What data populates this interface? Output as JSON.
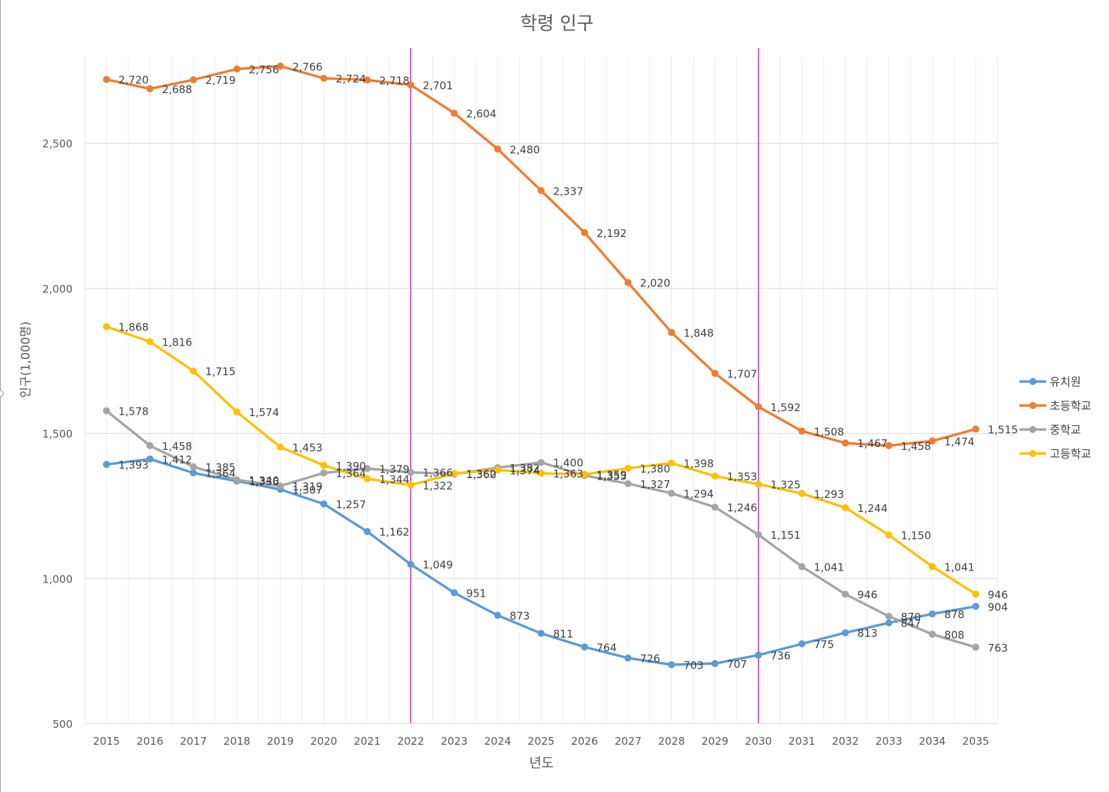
{
  "chart_data": {
    "type": "line",
    "title": "학령 인구",
    "xlabel": "년도",
    "ylabel": "인구(1,000명)",
    "x": [
      "2015",
      "2016",
      "2017",
      "2018",
      "2019",
      "2020",
      "2021",
      "2022",
      "2023",
      "2024",
      "2025",
      "2026",
      "2027",
      "2028",
      "2029",
      "2030",
      "2031",
      "2032",
      "2033",
      "2034",
      "2035"
    ],
    "yticks": [
      500,
      1000,
      1500,
      2000,
      2500
    ],
    "ytick_labels": [
      "500",
      "1,000",
      "1,500",
      "2,000",
      "2,500"
    ],
    "ylim": [
      500,
      2800
    ],
    "grid": true,
    "legend_position": "right",
    "reference_lines": [
      {
        "x": "2022",
        "color": "#C000C0"
      },
      {
        "x": "2030",
        "color": "#C000C0"
      }
    ],
    "series": [
      {
        "name": "유치원",
        "color": "#5B9BD5",
        "values": [
          1393,
          1412,
          1364,
          1336,
          1307,
          1257,
          1162,
          1049,
          951,
          873,
          811,
          764,
          726,
          703,
          707,
          736,
          775,
          813,
          847,
          878,
          904
        ]
      },
      {
        "name": "초등학교",
        "color": "#ED7D31",
        "values": [
          2720,
          2688,
          2719,
          2756,
          2766,
          2724,
          2718,
          2701,
          2604,
          2480,
          2337,
          2192,
          2020,
          1848,
          1707,
          1592,
          1508,
          1467,
          1458,
          1474,
          1515
        ]
      },
      {
        "name": "중학교",
        "color": "#A5A5A5",
        "values": [
          1578,
          1458,
          1385,
          1340,
          1319,
          1364,
          1379,
          1366,
          1360,
          1382,
          1400,
          1355,
          1327,
          1294,
          1246,
          1151,
          1041,
          946,
          870,
          808,
          763
        ]
      },
      {
        "name": "고등학교",
        "color": "#FFC000",
        "values": [
          1868,
          1816,
          1715,
          1574,
          1453,
          1390,
          1344,
          1322,
          1362,
          1374,
          1363,
          1359,
          1380,
          1398,
          1353,
          1325,
          1293,
          1244,
          1150,
          1041,
          946
        ]
      }
    ]
  }
}
